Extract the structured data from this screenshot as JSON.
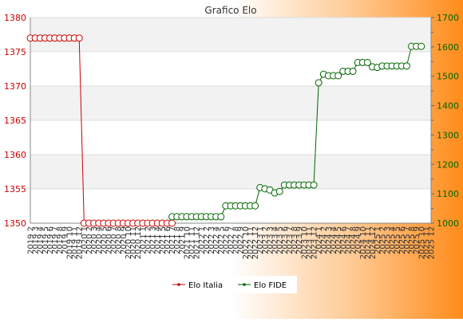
{
  "chart_data": {
    "type": "line",
    "title": "Grafico Elo",
    "x_labels": [
      "2019 2",
      "2019 3",
      "2019 4",
      "2019 5",
      "2019 6",
      "2019 7",
      "2019 8",
      "2019 9",
      "2019 10",
      "2019 11",
      "2019 12",
      "2020 1",
      "2020 2",
      "2020 3",
      "2020 4",
      "2020 5",
      "2020 6",
      "2020 7",
      "2020 8",
      "2020 9",
      "2020 10",
      "2020 11",
      "2020 12",
      "2021 1",
      "2021 2",
      "2021 3",
      "2021 4",
      "2021 5",
      "2021 6",
      "2021 7",
      "2021 8",
      "2021 9",
      "2021 10",
      "2021 11",
      "2021 12",
      "2022 1",
      "2022 2",
      "2022 3",
      "2022 4",
      "2022 5",
      "2022 6",
      "2022 7",
      "2022 8",
      "2022 9",
      "2022 10",
      "2022 11",
      "2022 12",
      "2023 1",
      "2023 2",
      "2023 3",
      "2023 4",
      "2023 5",
      "2023 6",
      "2023 7",
      "2023 8",
      "2023 9",
      "2023 10",
      "2023 11",
      "2023 12",
      "2024 1",
      "2024 2",
      "2024 3",
      "2024 4",
      "2024 5",
      "2024 6",
      "2024 7",
      "2024 8",
      "2024 9",
      "2024 10",
      "2024 11",
      "2024 12",
      "2025 1",
      "2025 2",
      "2025 3",
      "2025 4",
      "2025 5",
      "2025 6",
      "2025 7",
      "2025 8",
      "2025 9",
      "2025 10",
      "2025 11",
      "2025 12"
    ],
    "y_left": {
      "min": 1350,
      "max": 1380,
      "ticks": [
        "1350",
        "1355",
        "1360",
        "1365",
        "1370",
        "1375",
        "1380"
      ],
      "color": "#cc0000"
    },
    "y_right": {
      "min": 1000,
      "max": 1700,
      "ticks": [
        "1000",
        "1100",
        "1200",
        "1300",
        "1400",
        "1500",
        "1600",
        "1700"
      ],
      "color": "#006600"
    },
    "series": [
      {
        "name": "Elo Italia",
        "axis": "left",
        "color": "#cc0000",
        "start_index": 0,
        "values": [
          1377,
          1377,
          1377,
          1377,
          1377,
          1377,
          1377,
          1377,
          1377,
          1377,
          1377,
          1350,
          1350,
          1350,
          1350,
          1350,
          1350,
          1350,
          1350,
          1350,
          1350,
          1350,
          1350,
          1350,
          1350,
          1350,
          1350,
          1350,
          1350,
          1350
        ]
      },
      {
        "name": "Elo FIDE",
        "axis": "right",
        "color": "#006600",
        "start_index": 29,
        "values": [
          1022,
          1022,
          1022,
          1022,
          1022,
          1022,
          1022,
          1022,
          1022,
          1022,
          1022,
          1059,
          1059,
          1059,
          1059,
          1059,
          1059,
          1059,
          1121,
          1117,
          1113,
          1103,
          1108,
          1130,
          1130,
          1130,
          1130,
          1130,
          1130,
          1130,
          1478,
          1507,
          1502,
          1502,
          1502,
          1517,
          1517,
          1517,
          1547,
          1547,
          1547,
          1532,
          1530,
          1535,
          1535,
          1535,
          1535,
          1535,
          1535,
          1602,
          1602,
          1602
        ]
      }
    ],
    "legend": "bottom"
  }
}
